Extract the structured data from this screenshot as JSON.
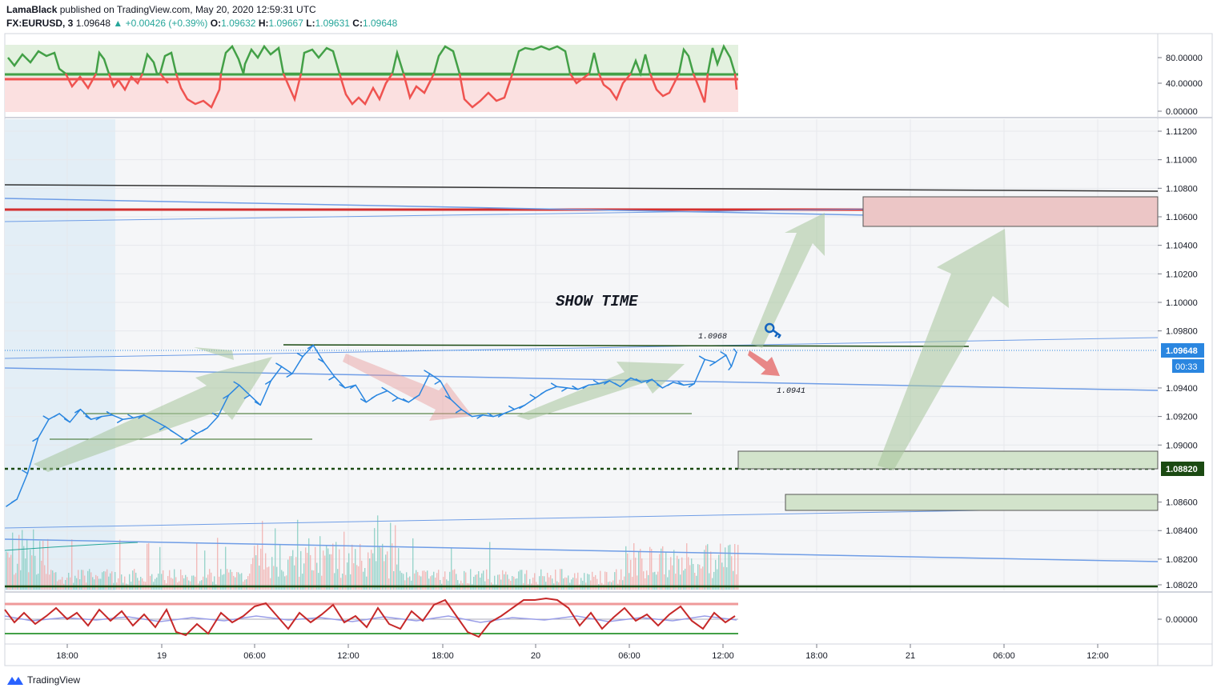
{
  "header": {
    "author": "LamaBlack",
    "published_text": "published on TradingView.com, May 20, 2020 12:59:31 UTC",
    "symbol": "FX:EURUSD, 3",
    "last": "1.09648",
    "change": "+0.00426 (+0.39%)",
    "open_label": "O:",
    "open": "1.09632",
    "high_label": "H:",
    "high": "1.09667",
    "low_label": "L:",
    "low": "1.09631",
    "close_label": "C:",
    "close": "1.09648"
  },
  "footer": {
    "brand": "TradingView"
  },
  "colors": {
    "price_line": "#2a86e0",
    "support": "#33691e",
    "resistance": "#d32f2f",
    "arrow_green": "#a5c49a",
    "arrow_red": "#e89a9a",
    "osc_green": "#43a047",
    "osc_red": "#ef5350"
  },
  "chart_data": [
    {
      "type": "line",
      "panel": "oscillator-top",
      "y_ticks": [
        "80.00000",
        "40.00000",
        "0.00000"
      ],
      "levels": [
        55,
        47
      ],
      "ylim": [
        0,
        100
      ]
    },
    {
      "type": "line",
      "panel": "price",
      "series_name": "FX:EURUSD, 3",
      "x_ticks": [
        "18:00",
        "19",
        "06:00",
        "12:00",
        "18:00",
        "20",
        "06:00",
        "12:00",
        "18:00",
        "21",
        "06:00",
        "12:00"
      ],
      "y_ticks": [
        "1.11200",
        "1.11000",
        "1.10800",
        "1.10600",
        "1.10400",
        "1.10200",
        "1.10000",
        "1.09800",
        "1.09400",
        "1.09200",
        "1.09000",
        "1.08600",
        "1.08400",
        "1.08200",
        "1.08020"
      ],
      "ylim": [
        1.0796,
        1.1132
      ],
      "points": [
        [
          0,
          1.0857
        ],
        [
          2,
          1.0862
        ],
        [
          4,
          1.088
        ],
        [
          6,
          1.0905
        ],
        [
          8,
          1.0918
        ],
        [
          10,
          1.0922
        ],
        [
          12,
          1.0916
        ],
        [
          14,
          1.0925
        ],
        [
          16,
          1.0918
        ],
        [
          18,
          1.092
        ],
        [
          20,
          1.0921
        ],
        [
          22,
          1.0918
        ],
        [
          24,
          1.0919
        ],
        [
          26,
          1.0921
        ],
        [
          28,
          1.0917
        ],
        [
          30,
          1.0913
        ],
        [
          32,
          1.0908
        ],
        [
          34,
          1.0903
        ],
        [
          36,
          1.0908
        ],
        [
          38,
          1.0912
        ],
        [
          40,
          1.092
        ],
        [
          42,
          1.0935
        ],
        [
          44,
          1.0942
        ],
        [
          46,
          1.0935
        ],
        [
          48,
          1.0928
        ],
        [
          50,
          1.0945
        ],
        [
          52,
          1.0955
        ],
        [
          54,
          1.095
        ],
        [
          56,
          1.0962
        ],
        [
          58,
          1.097
        ],
        [
          60,
          1.0958
        ],
        [
          62,
          1.0948
        ],
        [
          64,
          1.094
        ],
        [
          66,
          1.0942
        ],
        [
          68,
          1.093
        ],
        [
          70,
          1.0935
        ],
        [
          72,
          1.0938
        ],
        [
          74,
          1.0933
        ],
        [
          76,
          1.093
        ],
        [
          78,
          1.0935
        ],
        [
          80,
          1.095
        ],
        [
          82,
          1.0945
        ],
        [
          84,
          1.0932
        ],
        [
          86,
          1.0925
        ],
        [
          88,
          1.092
        ],
        [
          90,
          1.0921
        ],
        [
          92,
          1.092
        ],
        [
          94,
          1.0922
        ],
        [
          96,
          1.0925
        ],
        [
          98,
          1.0928
        ],
        [
          100,
          1.0933
        ],
        [
          102,
          1.0938
        ],
        [
          104,
          1.0941
        ],
        [
          106,
          1.094
        ],
        [
          108,
          1.0939
        ],
        [
          110,
          1.0942
        ],
        [
          112,
          1.0943
        ],
        [
          114,
          1.0945
        ],
        [
          116,
          1.0941
        ],
        [
          118,
          1.0947
        ],
        [
          120,
          1.0944
        ],
        [
          122,
          1.0946
        ],
        [
          124,
          1.094
        ],
        [
          126,
          1.0944
        ],
        [
          128,
          1.0942
        ],
        [
          130,
          1.0943
        ],
        [
          132,
          1.096
        ],
        [
          134,
          1.0958
        ],
        [
          136,
          1.0963
        ],
        [
          137,
          1.0955
        ],
        [
          138,
          1.0965
        ]
      ],
      "annotations": [
        {
          "text": "SHOW TIME"
        },
        {
          "text": "1.0968"
        },
        {
          "text": "1.0941"
        }
      ],
      "price_labels": [
        {
          "text": "1.09648",
          "value": 1.09648,
          "color": "#2a86e0"
        },
        {
          "text": "00:33",
          "value": 1.0959,
          "color": "#2a86e0"
        },
        {
          "text": "1.08820",
          "value": 1.0882,
          "color": "#33691e"
        }
      ],
      "zones": [
        {
          "name": "resistance-zone",
          "from": 1.1053,
          "to": 1.1074,
          "color": "#e8b4b4"
        },
        {
          "name": "support-zone-1",
          "from": 1.0882,
          "to": 1.0894,
          "color": "#c8dcc0"
        },
        {
          "name": "support-zone-2",
          "from": 1.0852,
          "to": 1.0863,
          "color": "#c8dcc0"
        }
      ]
    },
    {
      "type": "line",
      "panel": "oscillator-bottom",
      "y_ticks": [
        "0.00000"
      ]
    }
  ]
}
